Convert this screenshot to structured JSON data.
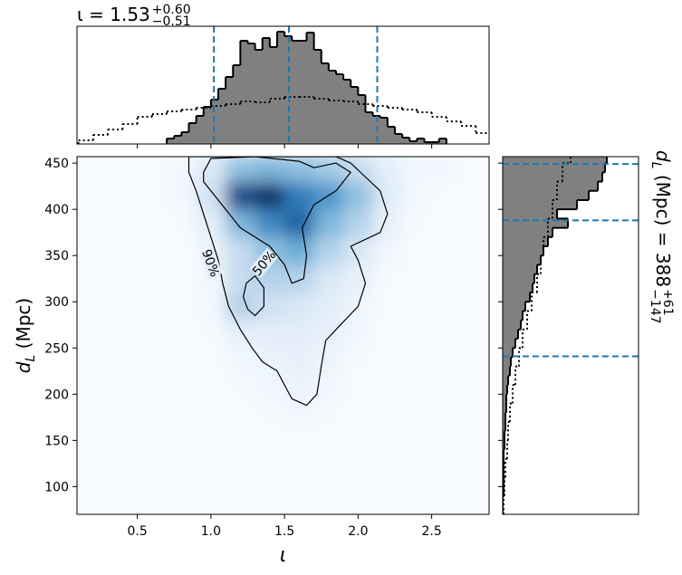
{
  "chart_data": [
    {
      "type": "heatmap",
      "xlabel": "ι",
      "ylabel": {
        "main": "d",
        "sub": "L",
        "rest": " (Mpc)"
      },
      "xlim": [
        0.09,
        2.89
      ],
      "ylim": [
        70,
        457
      ],
      "xticks": [
        0.5,
        {
          "value": 1.0,
          "label": "1.0"
        },
        1.5,
        {
          "value": 2.0,
          "label": "2.0"
        },
        2.5
      ],
      "yticks": [
        100,
        150,
        200,
        250,
        300,
        350,
        400,
        450
      ],
      "x_edges": [
        0.1,
        0.3,
        0.5,
        0.7,
        0.9,
        1.1,
        1.3,
        1.5,
        1.7,
        1.9,
        2.1,
        2.3,
        2.5,
        2.7,
        2.9
      ],
      "y_edges": [
        70,
        100,
        130,
        160,
        190,
        220,
        250,
        280,
        310,
        340,
        370,
        400,
        430,
        460
      ],
      "zlim": [
        0,
        1
      ],
      "colormap": [
        "#f7fbff",
        "#c6dbef",
        "#6baed6",
        "#2171b5",
        "#08306b"
      ],
      "z": [
        [
          0,
          0,
          0,
          0,
          0,
          0,
          0,
          0,
          0,
          0,
          0,
          0,
          0,
          0
        ],
        [
          0,
          0,
          0,
          0,
          0,
          0,
          0,
          0,
          0,
          0,
          0,
          0,
          0,
          0
        ],
        [
          0,
          0,
          0,
          0,
          0,
          0,
          0,
          0,
          0,
          0,
          0,
          0,
          0,
          0
        ],
        [
          0,
          0,
          0,
          0,
          0,
          0,
          0.01,
          0.02,
          0.01,
          0,
          0,
          0,
          0,
          0
        ],
        [
          0,
          0,
          0,
          0,
          0,
          0.01,
          0.03,
          0.06,
          0.03,
          0,
          0,
          0,
          0,
          0
        ],
        [
          0,
          0,
          0,
          0,
          0,
          0.03,
          0.06,
          0.08,
          0.05,
          0.01,
          0,
          0,
          0,
          0
        ],
        [
          0,
          0,
          0,
          0,
          0.01,
          0.08,
          0.1,
          0.1,
          0.08,
          0.03,
          0,
          0,
          0,
          0
        ],
        [
          0,
          0,
          0,
          0,
          0.02,
          0.3,
          0.2,
          0.15,
          0.1,
          0.05,
          0,
          0,
          0,
          0
        ],
        [
          0,
          0,
          0,
          0,
          0.03,
          0.25,
          0.3,
          0.3,
          0.15,
          0.08,
          0.01,
          0,
          0,
          0
        ],
        [
          0,
          0,
          0,
          0,
          0.05,
          0.25,
          0.4,
          0.5,
          0.3,
          0.15,
          0.03,
          0,
          0,
          0
        ],
        [
          0,
          0,
          0,
          0.01,
          0.1,
          0.45,
          0.65,
          0.8,
          0.45,
          0.3,
          0.08,
          0.01,
          0,
          0
        ],
        [
          0,
          0,
          0,
          0.02,
          0.2,
          0.9,
          1.0,
          0.7,
          0.6,
          0.4,
          0.12,
          0.02,
          0,
          0
        ],
        [
          0,
          0,
          0,
          0.02,
          0.15,
          0.4,
          0.45,
          0.4,
          0.35,
          0.25,
          0.1,
          0.03,
          0.03,
          0
        ]
      ],
      "contours": [
        {
          "label": "90%",
          "paths": [
            {
              "x": [
                0.85,
                0.85,
                0.9,
                0.95,
                1.0,
                1.05,
                1.08,
                1.12,
                1.2,
                1.28,
                1.35,
                1.45,
                1.5,
                1.55,
                1.65,
                1.72,
                1.75,
                1.78,
                1.88,
                2.0,
                2.05,
                2.0,
                1.95,
                2.15,
                2.2,
                2.15,
                2.05,
                1.95,
                1.85
              ],
              "y": [
                457,
                440,
                420,
                395,
                370,
                345,
                320,
                295,
                270,
                250,
                235,
                225,
                210,
                195,
                188,
                200,
                230,
                258,
                275,
                295,
                320,
                345,
                360,
                375,
                395,
                420,
                435,
                450,
                457
              ]
            }
          ]
        },
        {
          "label": "50%",
          "paths": [
            {
              "x": [
                0.95,
                1.0,
                1.3,
                1.6,
                1.7,
                1.85,
                1.95,
                1.85,
                1.7,
                1.62,
                1.65,
                1.63,
                1.55,
                1.5,
                1.4,
                1.2,
                1.05,
                0.95
              ],
              "y": [
                440,
                455,
                457,
                452,
                445,
                450,
                440,
                420,
                405,
                380,
                350,
                325,
                320,
                340,
                360,
                380,
                410,
                430
              ]
            },
            {
              "x": [
                1.24,
                1.3,
                1.36,
                1.36,
                1.3,
                1.25,
                1.22
              ],
              "y": [
                320,
                328,
                315,
                295,
                285,
                292,
                305
              ]
            }
          ]
        }
      ]
    },
    {
      "type": "histogram",
      "orientation": "vertical",
      "title": {
        "main": "ι = 1.53",
        "sup": "+0.60",
        "sub": "−0.51"
      },
      "xlim": [
        0.09,
        2.89
      ],
      "ylim": [
        0,
        130
      ],
      "color": "#808080",
      "bins": [
        0.7,
        0.75,
        0.8,
        0.85,
        0.9,
        0.95,
        1.0,
        1.05,
        1.1,
        1.15,
        1.2,
        1.25,
        1.3,
        1.35,
        1.4,
        1.45,
        1.5,
        1.55,
        1.6,
        1.65,
        1.7,
        1.75,
        1.8,
        1.85,
        1.9,
        1.95,
        2.0,
        2.05,
        2.1,
        2.15,
        2.2,
        2.25,
        2.3,
        2.35,
        2.4,
        2.45,
        2.5,
        2.55,
        2.6
      ],
      "counts": [
        6,
        9,
        13,
        23,
        31,
        41,
        49,
        61,
        74,
        87,
        114,
        111,
        104,
        117,
        107,
        124,
        119,
        114,
        114,
        123,
        104,
        89,
        81,
        77,
        71,
        63,
        54,
        35,
        31,
        29,
        19,
        11,
        7,
        3,
        6,
        2,
        2,
        6
      ],
      "prior": {
        "bins": [
          0.1,
          0.2,
          0.3,
          0.4,
          0.5,
          0.6,
          0.7,
          0.8,
          0.9,
          1.0,
          1.1,
          1.2,
          1.3,
          1.4,
          1.5,
          1.6,
          1.7,
          1.8,
          1.9,
          2.0,
          2.1,
          2.2,
          2.3,
          2.4,
          2.5,
          2.6,
          2.7,
          2.8,
          2.9
        ],
        "counts": [
          4,
          10,
          16,
          22,
          30,
          33,
          36,
          38,
          40,
          42,
          44,
          47,
          46,
          50,
          52,
          52,
          50,
          48,
          47,
          44,
          42,
          40,
          38,
          35,
          30,
          25,
          20,
          12
        ]
      },
      "quantiles": [
        1.02,
        1.53,
        2.13
      ],
      "quantile_color": "#1f77b4"
    },
    {
      "type": "histogram",
      "orientation": "horizontal",
      "title": {
        "main": "d",
        "sub_l": "L",
        "rest": " (Mpc) = 388",
        "sup": "+61",
        "sub": "−147"
      },
      "xlim": [
        0,
        150
      ],
      "ylim": [
        70,
        457
      ],
      "color": "#808080",
      "bins": [
        70,
        80,
        90,
        100,
        110,
        120,
        130,
        140,
        150,
        160,
        170,
        180,
        190,
        200,
        210,
        220,
        230,
        240,
        250,
        260,
        270,
        280,
        290,
        300,
        310,
        320,
        330,
        340,
        350,
        360,
        370,
        380,
        390,
        400,
        410,
        420,
        430,
        440,
        450,
        460
      ],
      "counts": [
        0,
        0,
        1,
        1,
        1,
        1,
        1,
        2,
        2,
        3,
        3,
        4,
        4,
        5,
        6,
        8,
        9,
        11,
        14,
        17,
        20,
        22,
        25,
        30,
        33,
        35,
        38,
        42,
        45,
        50,
        55,
        72,
        60,
        82,
        95,
        105,
        110,
        113,
        115
      ],
      "prior": {
        "bins": [
          70,
          90,
          110,
          130,
          150,
          170,
          190,
          210,
          230,
          250,
          270,
          290,
          310,
          330,
          350,
          370,
          390,
          410,
          430,
          450,
          470
        ],
        "counts": [
          1,
          2,
          3,
          5,
          6,
          8,
          11,
          14,
          18,
          22,
          27,
          32,
          38,
          42,
          45,
          50,
          55,
          60,
          66,
          75
        ]
      },
      "quantiles": [
        241,
        388,
        449
      ],
      "quantile_color": "#1f77b4"
    }
  ]
}
